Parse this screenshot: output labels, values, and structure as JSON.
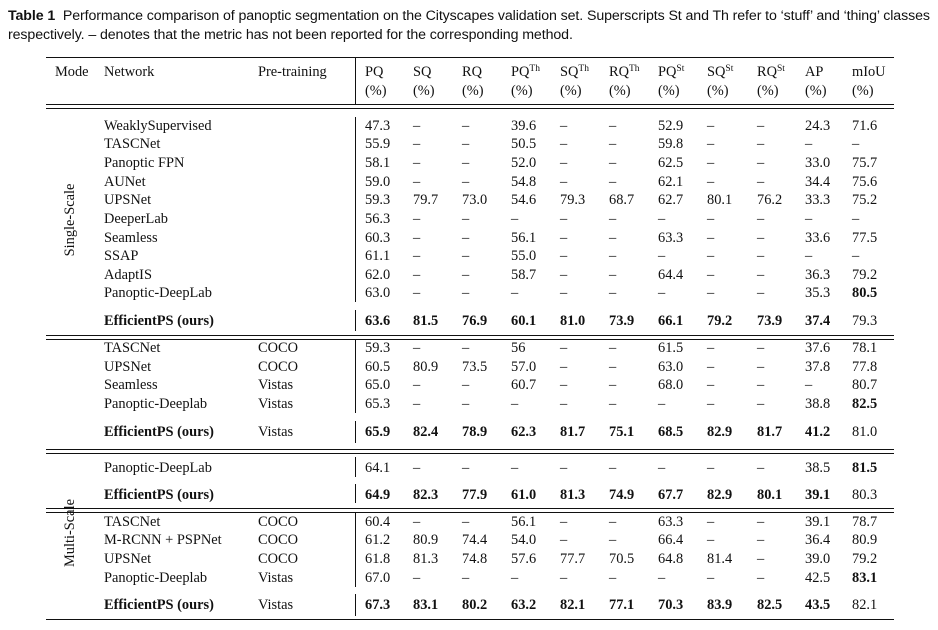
{
  "caption": {
    "label": "Table 1",
    "text": "Performance comparison of panoptic segmentation on the Cityscapes validation set. Superscripts St and Th refer to ‘stuff’ and ‘thing’ classes respectively. – denotes that the metric has not been reported for the corresponding method."
  },
  "header": {
    "mode": "Mode",
    "network": "Network",
    "pretraining": "Pre-training",
    "metrics": [
      {
        "name": "PQ",
        "sup": "",
        "unit": "(%)"
      },
      {
        "name": "SQ",
        "sup": "",
        "unit": "(%)"
      },
      {
        "name": "RQ",
        "sup": "",
        "unit": "(%)"
      },
      {
        "name": "PQ",
        "sup": "Th",
        "unit": "(%)"
      },
      {
        "name": "SQ",
        "sup": "Th",
        "unit": "(%)"
      },
      {
        "name": "RQ",
        "sup": "Th",
        "unit": "(%)"
      },
      {
        "name": "PQ",
        "sup": "St",
        "unit": "(%)"
      },
      {
        "name": "SQ",
        "sup": "St",
        "unit": "(%)"
      },
      {
        "name": "RQ",
        "sup": "St",
        "unit": "(%)"
      },
      {
        "name": "AP",
        "sup": "",
        "unit": "(%)"
      },
      {
        "name": "mIoU",
        "sup": "",
        "unit": "(%)"
      }
    ]
  },
  "modes": [
    "Single-Scale",
    "Multi-Scale"
  ],
  "rows": [
    {
      "network": "WeaklySupervised",
      "pretraining": "",
      "values": [
        "47.3",
        "–",
        "–",
        "39.6",
        "–",
        "–",
        "52.9",
        "–",
        "–",
        "24.3",
        "71.6"
      ],
      "bold_cols": []
    },
    {
      "network": "TASCNet",
      "pretraining": "",
      "values": [
        "55.9",
        "–",
        "–",
        "50.5",
        "–",
        "–",
        "59.8",
        "–",
        "–",
        "–",
        "–"
      ],
      "bold_cols": []
    },
    {
      "network": "Panoptic FPN",
      "pretraining": "",
      "values": [
        "58.1",
        "–",
        "–",
        "52.0",
        "–",
        "–",
        "62.5",
        "–",
        "–",
        "33.0",
        "75.7"
      ],
      "bold_cols": []
    },
    {
      "network": "AUNet",
      "pretraining": "",
      "values": [
        "59.0",
        "–",
        "–",
        "54.8",
        "–",
        "–",
        "62.1",
        "–",
        "–",
        "34.4",
        "75.6"
      ],
      "bold_cols": []
    },
    {
      "network": "UPSNet",
      "pretraining": "",
      "values": [
        "59.3",
        "79.7",
        "73.0",
        "54.6",
        "79.3",
        "68.7",
        "62.7",
        "80.1",
        "76.2",
        "33.3",
        "75.2"
      ],
      "bold_cols": []
    },
    {
      "network": "DeeperLab",
      "pretraining": "",
      "values": [
        "56.3",
        "–",
        "–",
        "–",
        "–",
        "–",
        "–",
        "–",
        "–",
        "–",
        "–"
      ],
      "bold_cols": []
    },
    {
      "network": "Seamless",
      "pretraining": "",
      "values": [
        "60.3",
        "–",
        "–",
        "56.1",
        "–",
        "–",
        "63.3",
        "–",
        "–",
        "33.6",
        "77.5"
      ],
      "bold_cols": []
    },
    {
      "network": "SSAP",
      "pretraining": "",
      "values": [
        "61.1",
        "–",
        "–",
        "55.0",
        "–",
        "–",
        "–",
        "–",
        "–",
        "–",
        "–"
      ],
      "bold_cols": []
    },
    {
      "network": "AdaptIS",
      "pretraining": "",
      "values": [
        "62.0",
        "–",
        "–",
        "58.7",
        "–",
        "–",
        "64.4",
        "–",
        "–",
        "36.3",
        "79.2"
      ],
      "bold_cols": []
    },
    {
      "network": "Panoptic-DeepLab",
      "pretraining": "",
      "values": [
        "63.0",
        "–",
        "–",
        "–",
        "–",
        "–",
        "–",
        "–",
        "–",
        "35.3",
        "80.5"
      ],
      "bold_cols": [
        10
      ]
    },
    {
      "network": "EfficientPS (ours)",
      "pretraining": "",
      "values": [
        "63.6",
        "81.5",
        "76.9",
        "60.1",
        "81.0",
        "73.9",
        "66.1",
        "79.2",
        "73.9",
        "37.4",
        "79.3"
      ],
      "bold_cols": [
        0,
        1,
        2,
        3,
        4,
        5,
        6,
        7,
        8,
        9
      ],
      "bold_name": true
    },
    {
      "network": "TASCNet",
      "pretraining": "COCO",
      "values": [
        "59.3",
        "–",
        "–",
        "56",
        "–",
        "–",
        "61.5",
        "–",
        "–",
        "37.6",
        "78.1"
      ],
      "bold_cols": []
    },
    {
      "network": "UPSNet",
      "pretraining": "COCO",
      "values": [
        "60.5",
        "80.9",
        "73.5",
        "57.0",
        "–",
        "–",
        "63.0",
        "–",
        "–",
        "37.8",
        "77.8"
      ],
      "bold_cols": []
    },
    {
      "network": "Seamless",
      "pretraining": "Vistas",
      "values": [
        "65.0",
        "–",
        "–",
        "60.7",
        "–",
        "–",
        "68.0",
        "–",
        "–",
        "–",
        "80.7"
      ],
      "bold_cols": []
    },
    {
      "network": "Panoptic-Deeplab",
      "pretraining": "Vistas",
      "values": [
        "65.3",
        "–",
        "–",
        "–",
        "–",
        "–",
        "–",
        "–",
        "–",
        "38.8",
        "82.5"
      ],
      "bold_cols": [
        10
      ]
    },
    {
      "network": "EfficientPS (ours)",
      "pretraining": "Vistas",
      "values": [
        "65.9",
        "82.4",
        "78.9",
        "62.3",
        "81.7",
        "75.1",
        "68.5",
        "82.9",
        "81.7",
        "41.2",
        "81.0"
      ],
      "bold_cols": [
        0,
        1,
        2,
        3,
        4,
        5,
        6,
        7,
        8,
        9
      ],
      "bold_name": true
    },
    {
      "network": "Panoptic-DeepLab",
      "pretraining": "",
      "values": [
        "64.1",
        "–",
        "–",
        "–",
        "–",
        "–",
        "–",
        "–",
        "–",
        "38.5",
        "81.5"
      ],
      "bold_cols": [
        10
      ]
    },
    {
      "network": "EfficientPS (ours)",
      "pretraining": "",
      "values": [
        "64.9",
        "82.3",
        "77.9",
        "61.0",
        "81.3",
        "74.9",
        "67.7",
        "82.9",
        "80.1",
        "39.1",
        "80.3"
      ],
      "bold_cols": [
        0,
        1,
        2,
        3,
        4,
        5,
        6,
        7,
        8,
        9
      ],
      "bold_name": true
    },
    {
      "network": "TASCNet",
      "pretraining": "COCO",
      "values": [
        "60.4",
        "–",
        "–",
        "56.1",
        "–",
        "–",
        "63.3",
        "–",
        "–",
        "39.1",
        "78.7"
      ],
      "bold_cols": []
    },
    {
      "network": "M-RCNN + PSPNet",
      "pretraining": "COCO",
      "values": [
        "61.2",
        "80.9",
        "74.4",
        "54.0",
        "–",
        "–",
        "66.4",
        "–",
        "–",
        "36.4",
        "80.9"
      ],
      "bold_cols": []
    },
    {
      "network": "UPSNet",
      "pretraining": "COCO",
      "values": [
        "61.8",
        "81.3",
        "74.8",
        "57.6",
        "77.7",
        "70.5",
        "64.8",
        "81.4",
        "–",
        "39.0",
        "79.2"
      ],
      "bold_cols": []
    },
    {
      "network": "Panoptic-Deeplab",
      "pretraining": "Vistas",
      "values": [
        "67.0",
        "–",
        "–",
        "–",
        "–",
        "–",
        "–",
        "–",
        "–",
        "42.5",
        "83.1"
      ],
      "bold_cols": [
        10
      ]
    },
    {
      "network": "EfficientPS (ours)",
      "pretraining": "Vistas",
      "values": [
        "67.3",
        "83.1",
        "80.2",
        "63.2",
        "82.1",
        "77.1",
        "70.3",
        "83.9",
        "82.5",
        "43.5",
        "82.1"
      ],
      "bold_cols": [
        0,
        1,
        2,
        3,
        4,
        5,
        6,
        7,
        8,
        9
      ],
      "bold_name": true
    }
  ]
}
